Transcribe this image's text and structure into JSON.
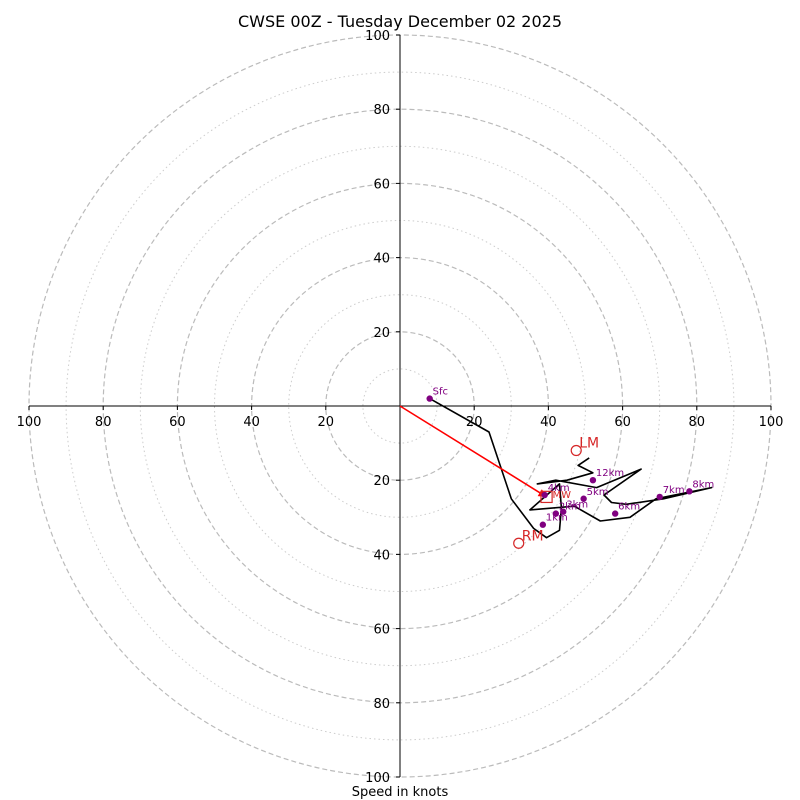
{
  "chart_data": {
    "type": "hodograph",
    "title": "CWSE 00Z - Tuesday December 02 2025",
    "xlabel": "Speed in knots",
    "xlim": [
      -100,
      100
    ],
    "ylim": [
      -100,
      100
    ],
    "major_rings": [
      20,
      40,
      60,
      80,
      100
    ],
    "minor_rings": [
      10,
      30,
      50,
      70,
      90
    ],
    "x_tick_labels": [
      "100",
      "80",
      "60",
      "40",
      "20",
      "20",
      "40",
      "60",
      "80",
      "100"
    ],
    "x_tick_values": [
      -100,
      -80,
      -60,
      -40,
      -20,
      20,
      40,
      60,
      80,
      100
    ],
    "y_tick_labels_upper": [
      "20",
      "40",
      "60",
      "80",
      "100"
    ],
    "y_tick_labels_lower": [
      "20",
      "40",
      "60",
      "80",
      "100"
    ],
    "y_tick_values_upper": [
      20,
      40,
      60,
      80,
      100
    ],
    "y_tick_values_lower": [
      -20,
      -40,
      -60,
      -80,
      -100
    ],
    "trace": [
      [
        8,
        2
      ],
      [
        24,
        -7
      ],
      [
        30,
        -25
      ],
      [
        36,
        -33
      ],
      [
        39.5,
        -35.5
      ],
      [
        43,
        -33.5
      ],
      [
        43.5,
        -27.5
      ],
      [
        43,
        -21
      ],
      [
        35,
        -28
      ],
      [
        47,
        -27
      ],
      [
        54,
        -31
      ],
      [
        62,
        -30
      ],
      [
        69,
        -25
      ],
      [
        74,
        -24
      ],
      [
        84,
        -22
      ],
      [
        71,
        -25
      ],
      [
        61,
        -26.5
      ],
      [
        57,
        -26
      ],
      [
        55,
        -24
      ],
      [
        65,
        -17
      ],
      [
        53,
        -22
      ],
      [
        42,
        -20
      ],
      [
        37,
        -21
      ],
      [
        45,
        -20
      ],
      [
        52,
        -18
      ],
      [
        48,
        -16
      ],
      [
        51,
        -14
      ]
    ],
    "height_markers": [
      {
        "label": "Sfc",
        "u": 8,
        "v": 2
      },
      {
        "label": "1km",
        "u": 38.5,
        "v": -32
      },
      {
        "label": "2km",
        "u": 42,
        "v": -29
      },
      {
        "label": "3km",
        "u": 44,
        "v": -28.5
      },
      {
        "label": "4km",
        "u": 39,
        "v": -24
      },
      {
        "label": "5km",
        "u": 49.5,
        "v": -25
      },
      {
        "label": "6km",
        "u": 58,
        "v": -29
      },
      {
        "label": "7km",
        "u": 70,
        "v": -24.5
      },
      {
        "label": "8km",
        "u": 78,
        "v": -23
      },
      {
        "label": "12km",
        "u": 52,
        "v": -20
      }
    ],
    "storm_motion": [
      {
        "label": "LM",
        "u": 47.5,
        "v": -12
      },
      {
        "label": "RM",
        "u": 32,
        "v": -37
      }
    ],
    "mean_wind": {
      "label": "MW",
      "u": 39.5,
      "v": -24.5,
      "box_size": 3
    },
    "shear_vector": {
      "from": [
        0,
        0
      ],
      "to": [
        39.5,
        -24.5
      ]
    },
    "colors": {
      "trace": "#000000",
      "marker": "#800080",
      "marker_label": "#800080",
      "storm_motion": "#d62728",
      "shear_vector": "#ff0000",
      "major_grid": "#bbbbbb",
      "minor_grid": "#cccccc",
      "axis": "#000000"
    }
  }
}
